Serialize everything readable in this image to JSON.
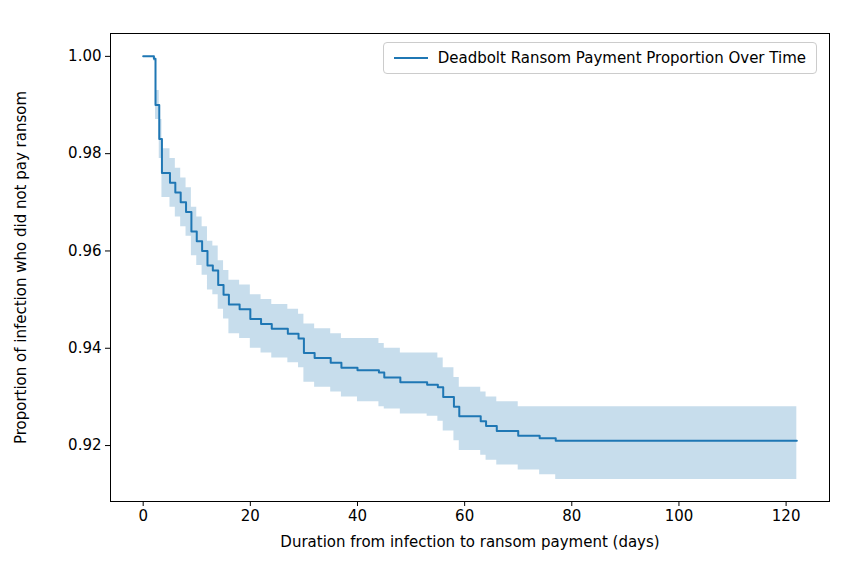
{
  "chart_data": {
    "type": "line",
    "x_label": "Duration from infection to ransom payment (days)",
    "y_label": "Proportion of infection who did not pay ransom",
    "x": [
      0,
      2,
      2.3,
      3,
      3.5,
      5,
      6,
      7,
      8,
      9,
      10,
      11,
      12,
      13,
      14,
      15,
      16,
      18,
      20,
      22,
      24,
      27,
      29,
      30,
      32,
      35,
      37,
      40,
      44,
      45,
      48,
      53,
      55,
      56,
      58,
      59,
      63,
      64,
      66,
      70,
      74,
      77,
      122
    ],
    "series": [
      {
        "name": "Deadbolt Ransom Payment Proportion Over Time",
        "color": "#1f77b4",
        "line_style": "step",
        "values": [
          1.0,
          0.9995,
          0.99,
          0.983,
          0.976,
          0.974,
          0.972,
          0.97,
          0.968,
          0.964,
          0.962,
          0.96,
          0.957,
          0.956,
          0.953,
          0.951,
          0.949,
          0.948,
          0.946,
          0.945,
          0.944,
          0.943,
          0.942,
          0.939,
          0.938,
          0.937,
          0.936,
          0.9355,
          0.935,
          0.934,
          0.933,
          0.9325,
          0.932,
          0.93,
          0.928,
          0.926,
          0.925,
          0.924,
          0.923,
          0.922,
          0.9215,
          0.921,
          0.921
        ],
        "lower": [
          1.0,
          0.999,
          0.987,
          0.979,
          0.971,
          0.969,
          0.967,
          0.965,
          0.963,
          0.959,
          0.957,
          0.955,
          0.952,
          0.951,
          0.948,
          0.946,
          0.943,
          0.942,
          0.94,
          0.939,
          0.938,
          0.937,
          0.936,
          0.933,
          0.932,
          0.931,
          0.93,
          0.929,
          0.928,
          0.9275,
          0.9265,
          0.926,
          0.925,
          0.923,
          0.921,
          0.919,
          0.918,
          0.917,
          0.916,
          0.915,
          0.914,
          0.913,
          0.913
        ],
        "upper": [
          1.0,
          1.0,
          0.993,
          0.987,
          0.981,
          0.979,
          0.977,
          0.975,
          0.973,
          0.969,
          0.967,
          0.965,
          0.962,
          0.961,
          0.958,
          0.956,
          0.954,
          0.953,
          0.951,
          0.95,
          0.949,
          0.948,
          0.947,
          0.945,
          0.944,
          0.943,
          0.942,
          0.942,
          0.941,
          0.94,
          0.939,
          0.939,
          0.938,
          0.936,
          0.934,
          0.932,
          0.931,
          0.93,
          0.929,
          0.928,
          0.928,
          0.928,
          0.928
        ]
      }
    ],
    "xlim": [
      -6.1,
      128.1
    ],
    "xticks": [
      0,
      20,
      40,
      60,
      80,
      100,
      120
    ],
    "ylim": [
      0.9085,
      1.0047
    ],
    "yticks": [
      0.92,
      0.94,
      0.96,
      0.98,
      {
        "value": 1,
        "label": "1.00"
      }
    ],
    "grid": false,
    "legend": "upper right"
  }
}
